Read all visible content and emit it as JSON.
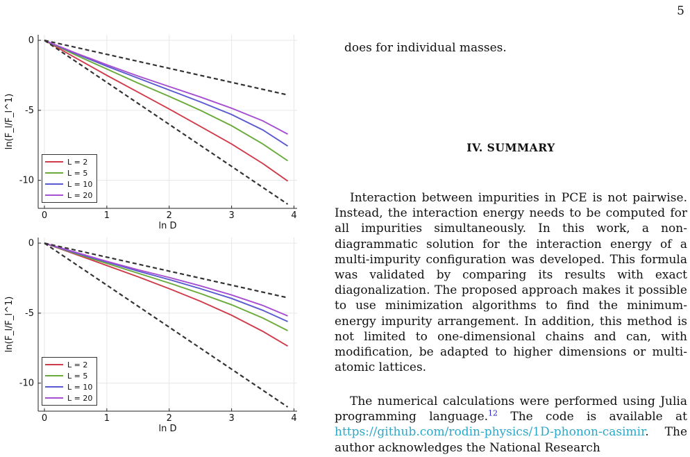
{
  "page": {
    "number": "5"
  },
  "text": {
    "intro": "does for individual masses.",
    "section_heading": "IV.   SUMMARY",
    "summary_paragraph": "Interaction between impurities in PCE is not pairwise. Instead, the interaction energy needs to be computed for all impurities simultaneously. In this work, a non-diagrammatic solution for the interaction energy of a multi-impurity configuration was developed. This formula was validated by comparing its results with exact diagonalization. The proposed approach makes it possible to use minimization algorithms to find the minimum-energy impurity arrangement. In addition, this method is not limited to one-dimensional chains and can, with modification, be adapted to higher dimensions or multi-atomic lattices.",
    "ack_part1": "The numerical calculations were performed using Julia programming language.",
    "ack_ref": "12",
    "ack_part2": " The code is available at ",
    "ack_link": "https://github.com/rodin-physics/1D-phonon-casimir",
    "ack_part3": ". The author acknowledges the National Research"
  },
  "chart_data": [
    {
      "type": "line",
      "xlabel": "ln D",
      "ylabel": "ln(F_l/F_l^1)",
      "xlim": [
        -0.1,
        4.05
      ],
      "ylim": [
        -12,
        0.4
      ],
      "xticks": [
        "0",
        "1",
        "2",
        "3",
        "4"
      ],
      "yticks": [
        {
          "value": 0,
          "label": "0"
        },
        {
          "value": -5,
          "label": "-5"
        },
        {
          "value": -10,
          "label": "-10"
        }
      ],
      "grid": true,
      "legend_position": "bottom-left",
      "series": [
        {
          "name": "L = 2",
          "color": "#d03b4b",
          "x": [
            0,
            0.5,
            1,
            1.5,
            2,
            2.5,
            3,
            3.5,
            3.9
          ],
          "y": [
            0,
            -1.25,
            -2.5,
            -3.7,
            -4.9,
            -6.15,
            -7.4,
            -8.8,
            -10.05
          ]
        },
        {
          "name": "L = 5",
          "color": "#6aaa3a",
          "x": [
            0,
            0.5,
            1,
            1.5,
            2,
            2.5,
            3,
            3.5,
            3.9
          ],
          "y": [
            0,
            -1.05,
            -2.05,
            -3.05,
            -4.0,
            -5.0,
            -6.1,
            -7.4,
            -8.6
          ]
        },
        {
          "name": "L = 10",
          "color": "#5a5ad0",
          "x": [
            0,
            0.5,
            1,
            1.5,
            2,
            2.5,
            3,
            3.5,
            3.9
          ],
          "y": [
            0,
            -0.95,
            -1.85,
            -2.7,
            -3.55,
            -4.4,
            -5.3,
            -6.4,
            -7.55
          ]
        },
        {
          "name": "L = 20",
          "color": "#a64fd0",
          "x": [
            0,
            0.5,
            1,
            1.5,
            2,
            2.5,
            3,
            3.5,
            3.9
          ],
          "y": [
            0,
            -0.9,
            -1.75,
            -2.55,
            -3.3,
            -4.05,
            -4.85,
            -5.75,
            -6.7
          ]
        },
        {
          "color": "#333333",
          "dashed": true,
          "x": [
            0,
            3.9
          ],
          "y": [
            0,
            -3.9
          ]
        },
        {
          "color": "#333333",
          "dashed": true,
          "x": [
            0,
            3.9
          ],
          "y": [
            0,
            -11.7
          ]
        }
      ]
    },
    {
      "type": "line",
      "xlabel": "ln D",
      "ylabel": "ln(F_l/F_l^1)",
      "xlim": [
        -0.1,
        4.05
      ],
      "ylim": [
        -12,
        0.4
      ],
      "xticks": [
        "0",
        "1",
        "2",
        "3",
        "4"
      ],
      "yticks": [
        {
          "value": 0,
          "label": "0"
        },
        {
          "value": -5,
          "label": "-5"
        },
        {
          "value": -10,
          "label": "-10"
        }
      ],
      "grid": true,
      "legend_position": "bottom-left",
      "series": [
        {
          "name": "L = 2",
          "color": "#d03b4b",
          "x": [
            0,
            0.5,
            1,
            1.5,
            2,
            2.5,
            3,
            3.5,
            3.9
          ],
          "y": [
            0,
            -0.8,
            -1.6,
            -2.4,
            -3.25,
            -4.15,
            -5.15,
            -6.3,
            -7.35
          ]
        },
        {
          "name": "L = 5",
          "color": "#6aaa3a",
          "x": [
            0,
            0.5,
            1,
            1.5,
            2,
            2.5,
            3,
            3.5,
            3.9
          ],
          "y": [
            0,
            -0.75,
            -1.45,
            -2.15,
            -2.85,
            -3.6,
            -4.4,
            -5.35,
            -6.25
          ]
        },
        {
          "name": "L = 10",
          "color": "#5a5ad0",
          "x": [
            0,
            0.5,
            1,
            1.5,
            2,
            2.5,
            3,
            3.5,
            3.9
          ],
          "y": [
            0,
            -0.7,
            -1.35,
            -2.0,
            -2.6,
            -3.25,
            -3.95,
            -4.8,
            -5.6
          ]
        },
        {
          "name": "L = 20",
          "color": "#a64fd0",
          "x": [
            0,
            0.5,
            1,
            1.5,
            2,
            2.5,
            3,
            3.5,
            3.9
          ],
          "y": [
            0,
            -0.65,
            -1.3,
            -1.9,
            -2.45,
            -3.05,
            -3.7,
            -4.45,
            -5.2
          ]
        },
        {
          "color": "#333333",
          "dashed": true,
          "x": [
            0,
            3.9
          ],
          "y": [
            0,
            -3.9
          ]
        },
        {
          "color": "#333333",
          "dashed": true,
          "x": [
            0,
            3.9
          ],
          "y": [
            0,
            -11.7
          ]
        }
      ]
    }
  ]
}
